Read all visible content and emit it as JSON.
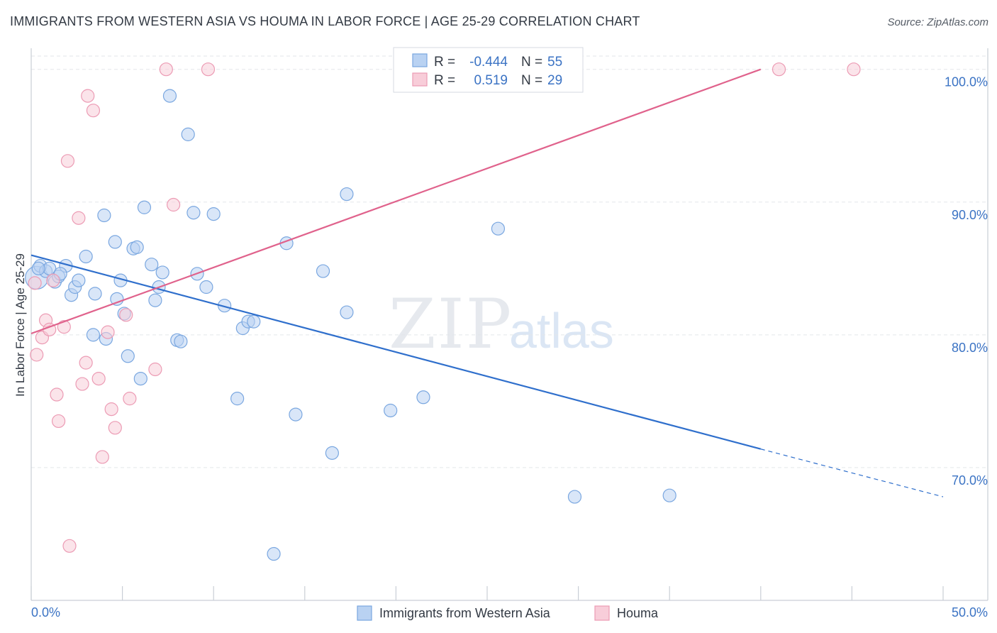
{
  "header": {
    "title": "IMMIGRANTS FROM WESTERN ASIA VS HOUMA IN LABOR FORCE | AGE 25-29 CORRELATION CHART",
    "source": "Source: ZipAtlas.com"
  },
  "watermark": {
    "zip": "ZIP",
    "atlas": "atlas"
  },
  "stats_box": {
    "rows": [
      {
        "r_label": "R =",
        "r_value": "-0.444",
        "n_label": "N =",
        "n_value": "55"
      },
      {
        "r_label": "R =",
        "r_value": "0.519",
        "n_label": "N =",
        "n_value": "29"
      }
    ]
  },
  "chart_data": {
    "type": "scatter",
    "title": "IMMIGRANTS FROM WESTERN ASIA VS HOUMA IN LABOR FORCE | AGE 25-29 CORRELATION CHART",
    "xlabel": "",
    "ylabel": "In Labor Force | Age 25-29",
    "xlim": [
      0,
      50
    ],
    "ylim": [
      60,
      101
    ],
    "x_tick_labels": {
      "min": "0.0%",
      "max": "50.0%"
    },
    "y_ticks": [
      {
        "value": 70,
        "label": "70.0%"
      },
      {
        "value": 80,
        "label": "80.0%"
      },
      {
        "value": 90,
        "label": "90.0%"
      },
      {
        "value": 100,
        "label": "100.0%"
      }
    ],
    "grid": true,
    "legend_position": "bottom-center",
    "series": [
      {
        "name": "Immigrants from Western Asia",
        "color": "#7aa7e0",
        "fill": "#b9d2f2",
        "line_color": "#2f6fcc",
        "r": -0.444,
        "n": 55,
        "trend": {
          "x0": 0,
          "y0": 86.0,
          "x1": 40,
          "y1": 71.4,
          "dash_to_x": 50,
          "dash_to_y": 67.8
        },
        "points": [
          [
            0.3,
            84.3
          ],
          [
            0.5,
            85.2
          ],
          [
            0.8,
            84.8
          ],
          [
            1.0,
            85.0
          ],
          [
            1.3,
            84.0
          ],
          [
            1.5,
            84.4
          ],
          [
            1.9,
            85.2
          ],
          [
            2.2,
            83.0
          ],
          [
            2.4,
            83.6
          ],
          [
            2.6,
            84.1
          ],
          [
            3.0,
            85.9
          ],
          [
            3.4,
            80.0
          ],
          [
            3.5,
            83.1
          ],
          [
            4.0,
            89.0
          ],
          [
            4.1,
            79.7
          ],
          [
            4.6,
            87.0
          ],
          [
            4.7,
            82.7
          ],
          [
            4.9,
            84.1
          ],
          [
            5.1,
            81.6
          ],
          [
            5.3,
            78.4
          ],
          [
            5.6,
            86.5
          ],
          [
            5.8,
            86.6
          ],
          [
            6.0,
            76.7
          ],
          [
            6.2,
            89.6
          ],
          [
            6.6,
            85.3
          ],
          [
            6.8,
            82.6
          ],
          [
            7.0,
            83.6
          ],
          [
            7.2,
            84.7
          ],
          [
            7.6,
            98.0
          ],
          [
            8.0,
            79.6
          ],
          [
            8.2,
            79.5
          ],
          [
            8.6,
            95.1
          ],
          [
            8.9,
            89.2
          ],
          [
            9.1,
            84.6
          ],
          [
            9.6,
            83.6
          ],
          [
            10.0,
            89.1
          ],
          [
            10.6,
            82.2
          ],
          [
            11.3,
            75.2
          ],
          [
            11.6,
            80.5
          ],
          [
            11.9,
            81.0
          ],
          [
            12.2,
            81.0
          ],
          [
            13.3,
            63.5
          ],
          [
            14.0,
            86.9
          ],
          [
            14.5,
            74.0
          ],
          [
            16.0,
            84.8
          ],
          [
            16.5,
            71.1
          ],
          [
            17.3,
            81.7
          ],
          [
            17.3,
            90.6
          ],
          [
            19.7,
            74.3
          ],
          [
            21.5,
            75.3
          ],
          [
            25.6,
            88.0
          ],
          [
            29.8,
            67.8
          ],
          [
            35.0,
            67.9
          ],
          [
            0.4,
            85.0
          ],
          [
            1.6,
            84.6
          ]
        ]
      },
      {
        "name": "Houma",
        "color": "#ec9bb4",
        "fill": "#f8cdd9",
        "line_color": "#e0628c",
        "r": 0.519,
        "n": 29,
        "trend": {
          "x0": 0,
          "y0": 80.1,
          "x1": 40,
          "y1": 100.0
        },
        "points": [
          [
            0.2,
            83.9
          ],
          [
            0.3,
            78.5
          ],
          [
            0.6,
            79.8
          ],
          [
            0.8,
            81.1
          ],
          [
            1.0,
            80.4
          ],
          [
            1.2,
            84.1
          ],
          [
            1.4,
            75.5
          ],
          [
            1.5,
            73.5
          ],
          [
            1.8,
            80.6
          ],
          [
            2.0,
            93.1
          ],
          [
            2.1,
            64.1
          ],
          [
            2.6,
            88.8
          ],
          [
            2.8,
            76.3
          ],
          [
            3.0,
            77.9
          ],
          [
            3.1,
            98.0
          ],
          [
            3.4,
            96.9
          ],
          [
            3.7,
            76.7
          ],
          [
            3.9,
            70.8
          ],
          [
            4.2,
            80.2
          ],
          [
            4.4,
            74.4
          ],
          [
            4.6,
            73.0
          ],
          [
            5.2,
            81.5
          ],
          [
            5.4,
            75.2
          ],
          [
            6.8,
            77.4
          ],
          [
            7.4,
            100.0
          ],
          [
            7.8,
            89.8
          ],
          [
            9.7,
            100.0
          ],
          [
            41.0,
            100.0
          ],
          [
            45.1,
            100.0
          ]
        ]
      }
    ]
  }
}
